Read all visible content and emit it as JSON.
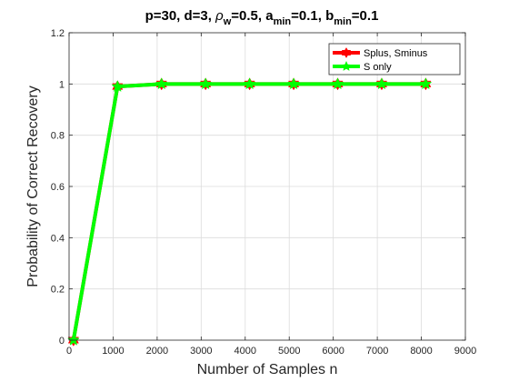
{
  "chart_data": {
    "type": "line",
    "title": {
      "p1": "p=30,  d=3, ",
      "rho": "ρ",
      "w": "w",
      "p2": "=0.5, a",
      "min1": "min",
      "p3": "=0.1, b",
      "min2": "min",
      "p4": "=0.1"
    },
    "xlabel": "Number of Samples n",
    "ylabel": "Probability of Correct Recovery",
    "xlim": [
      0,
      9000
    ],
    "ylim": [
      0,
      1.2
    ],
    "xticks": [
      "0",
      "1000",
      "2000",
      "3000",
      "4000",
      "5000",
      "6000",
      "7000",
      "8000",
      "9000"
    ],
    "yticks": [
      "0",
      "0.2",
      "0.4",
      "0.6",
      "0.8",
      "1",
      "1.2"
    ],
    "grid": true,
    "legend_position": "top-right",
    "x": [
      100,
      1100,
      2100,
      3100,
      4100,
      5100,
      6100,
      7100,
      8100
    ],
    "series": [
      {
        "name": "Splus, Sminus",
        "color": "#ff0000",
        "marker": "hexagram",
        "values": [
          0,
          0.99,
          1,
          1,
          1,
          1,
          1,
          1,
          1
        ]
      },
      {
        "name": "S only",
        "color": "#00ff00",
        "marker": "pentagram",
        "values": [
          0,
          0.99,
          1,
          1,
          1,
          1,
          1,
          1,
          1
        ]
      }
    ]
  }
}
